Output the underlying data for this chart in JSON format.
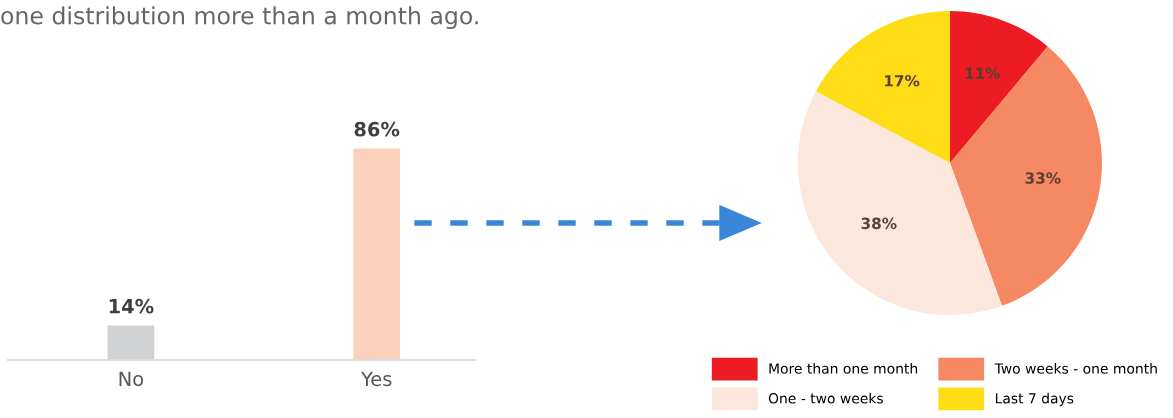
{
  "chart_data": [
    {
      "type": "bar",
      "title": "one distribution more than a month ago.",
      "categories": [
        "No",
        "Yes"
      ],
      "colors": [
        "#d1d2d4",
        "#fbd1bd"
      ],
      "values": [
        14,
        86
      ],
      "value_labels": [
        "14%",
        "86%"
      ]
    },
    {
      "type": "pie",
      "categories": [
        "More than one month",
        "Two weeks - one month",
        "One - two weeks",
        "Last 7 days"
      ],
      "values": [
        11,
        33,
        38,
        17
      ],
      "colors": [
        "#ed1c24",
        "#f58963",
        "#fbe7dc",
        "#fedd17"
      ],
      "value_labels": [
        "11%",
        "33%",
        "38%",
        "17%"
      ],
      "legend": "bottom"
    }
  ]
}
